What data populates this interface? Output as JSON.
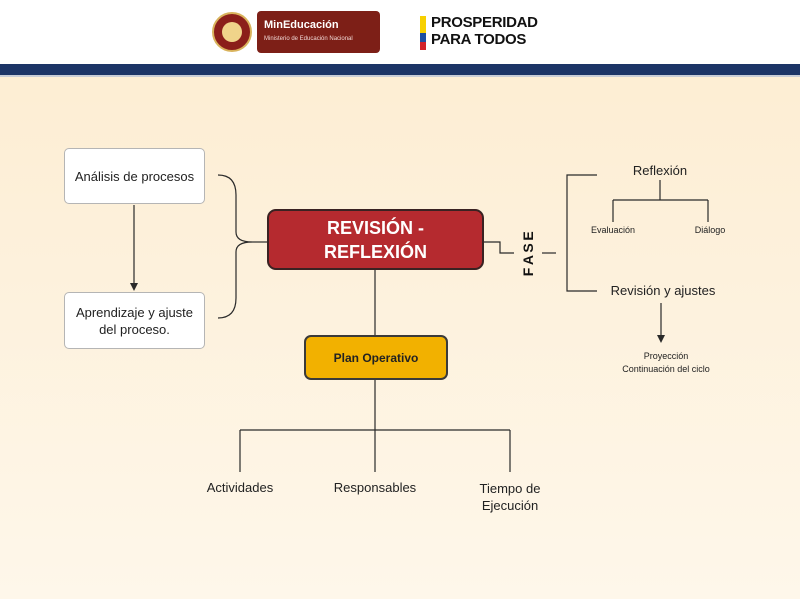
{
  "header": {
    "ministry_name": "MinEducación",
    "ministry_subtitle": "Ministerio de Educación Nacional",
    "slogan_line1": "PROSPERIDAD",
    "slogan_line2": "PARA TODOS"
  },
  "diagram": {
    "center": "REVISIÓN - REFLEXIÓN",
    "left_top": "Análisis de procesos",
    "left_bottom": "Aprendizaje y ajuste del proceso.",
    "plan": "Plan Operativo",
    "plan_children": [
      "Actividades",
      "Responsables",
      "Tiempo de Ejecución"
    ],
    "fase_label": "FASE",
    "fase_top": "Reflexión",
    "fase_top_children": [
      "Evaluación",
      "Diálogo"
    ],
    "fase_bottom": "Revisión y ajustes",
    "fase_bottom_result_line1": "Proyección",
    "fase_bottom_result_line2": "Continuación del ciclo"
  },
  "colors": {
    "header_bar": "#1c3466",
    "center_box": "#b52a2f",
    "plan_box": "#f2b100",
    "ministry_logo": "#7d1f17"
  }
}
